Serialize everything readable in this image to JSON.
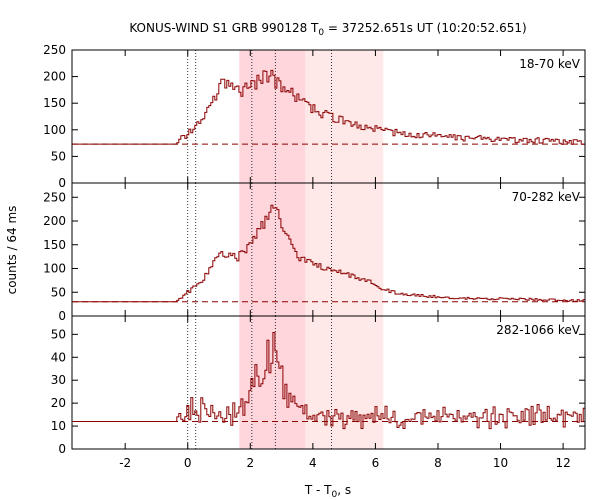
{
  "chart_data": {
    "type": "line",
    "title_prefix": "KONUS-WIND S1 GRB 990128 T",
    "title_sub": "0",
    "title_suffix": " = 37252.651s UT (10:20:52.651)",
    "xlabel_prefix": "T - T",
    "xlabel_sub": "0",
    "xlabel_suffix": ", s",
    "ylabel": "counts / 64 ms",
    "xlim": [
      -3.7,
      12.7
    ],
    "x_ticks": [
      -2,
      0,
      2,
      4,
      6,
      8,
      10,
      12
    ],
    "x_tick_labels": [
      "-2",
      "0",
      "2",
      "4",
      "6",
      "8",
      "10",
      "12"
    ],
    "shaded_regions": [
      {
        "name": "outer",
        "x": [
          1.65,
          6.25
        ],
        "color": "#ffe8e8"
      },
      {
        "name": "inner",
        "x": [
          1.65,
          3.75
        ],
        "color": "#ffd6dc"
      }
    ],
    "marker_lines": [
      0.0,
      0.256,
      2.05,
      2.8,
      4.6
    ],
    "panels": [
      {
        "band": "18-70 keV",
        "ylim": [
          0,
          250
        ],
        "yticks": [
          0,
          50,
          100,
          150,
          200,
          250
        ],
        "background": 73,
        "key_points": {
          "x": [
            -3.7,
            -0.35,
            -0.3,
            0.0,
            0.3,
            0.6,
            0.9,
            1.1,
            1.3,
            1.6,
            1.8,
            2.0,
            2.2,
            2.4,
            2.6,
            2.8,
            3.0,
            3.3,
            3.6,
            4.0,
            4.5,
            5.0,
            5.5,
            6.0,
            6.5,
            7.0,
            8.0,
            9.0,
            10.0,
            11.0,
            12.0,
            12.7
          ],
          "y": [
            73,
            73,
            78,
            92,
            108,
            128,
            165,
            188,
            180,
            172,
            175,
            183,
            190,
            197,
            205,
            193,
            178,
            168,
            153,
            140,
            125,
            115,
            108,
            101,
            96,
            92,
            88,
            84,
            82,
            80,
            78,
            78
          ]
        }
      },
      {
        "band": "70-282 keV",
        "ylim": [
          0,
          280
        ],
        "yticks": [
          0,
          50,
          100,
          150,
          200,
          250
        ],
        "background": 30,
        "key_points": {
          "x": [
            -3.7,
            -0.35,
            -0.3,
            0.0,
            0.4,
            0.7,
            1.0,
            1.3,
            1.6,
            1.9,
            2.2,
            2.4,
            2.6,
            2.8,
            3.0,
            3.2,
            3.4,
            3.7,
            4.0,
            4.5,
            5.0,
            5.5,
            6.0,
            6.3,
            6.7,
            7.0,
            8.0,
            9.0,
            10.0,
            11.0,
            12.0,
            12.7
          ],
          "y": [
            30,
            30,
            35,
            50,
            70,
            95,
            130,
            128,
            122,
            145,
            170,
            195,
            215,
            228,
            200,
            165,
            135,
            118,
            112,
            98,
            88,
            78,
            68,
            55,
            48,
            45,
            40,
            37,
            36,
            35,
            33,
            33
          ]
        }
      },
      {
        "band": "282-1066 keV",
        "ylim": [
          0,
          58
        ],
        "yticks": [
          0,
          10,
          20,
          30,
          40,
          50
        ],
        "background": 12,
        "key_points": {
          "x": [
            -3.7,
            -0.35,
            -0.3,
            0.0,
            0.5,
            1.0,
            1.5,
            1.9,
            2.1,
            2.3,
            2.5,
            2.7,
            2.85,
            3.0,
            3.2,
            3.5,
            3.8,
            4.2,
            5.0,
            6.0,
            7.0,
            8.0,
            9.0,
            10.0,
            11.0,
            12.0,
            12.7
          ],
          "y": [
            12,
            12,
            13,
            16,
            17,
            16,
            16,
            22,
            28,
            33,
            40,
            48,
            44,
            32,
            24,
            18,
            15,
            14,
            14,
            14,
            14,
            14,
            14,
            14,
            14,
            14,
            14
          ]
        }
      }
    ]
  }
}
